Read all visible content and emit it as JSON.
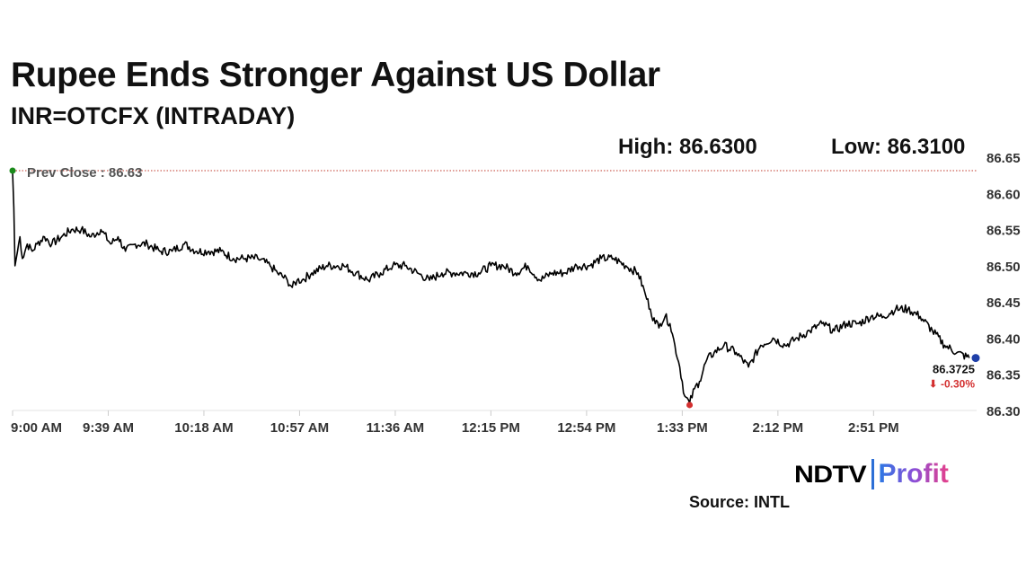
{
  "header": {
    "title": "Rupee Ends Stronger Against US Dollar",
    "subtitle": "INR=OTCFX (INTRADAY)",
    "high_text": "High: 86.6300",
    "low_text": "Low: 86.3100"
  },
  "footer": {
    "logo_ndtv": "NDTV",
    "logo_profit": "Profit",
    "source": "Source: INTL"
  },
  "colors": {
    "line": "#000000",
    "prev_close_line": "#c0392b",
    "open_marker": "#1a8a1a",
    "low_marker": "#d32f2f",
    "last_marker": "#1f3fa8",
    "change_negative": "#d32f2f"
  },
  "chart_data": {
    "type": "line",
    "title": "Rupee Ends Stronger Against US Dollar",
    "subtitle": "INR=OTCFX (INTRADAY)",
    "xlabel": "",
    "ylabel": "",
    "ylim": [
      86.3,
      86.65
    ],
    "y_ticks": [
      86.3,
      86.35,
      86.4,
      86.45,
      86.5,
      86.55,
      86.6,
      86.65
    ],
    "x_ticks": [
      "9:00 AM",
      "9:39 AM",
      "10:18 AM",
      "10:57 AM",
      "11:36 AM",
      "12:15 PM",
      "12:54 PM",
      "1:33 PM",
      "2:12 PM",
      "2:51 PM"
    ],
    "x_tick_minutes": [
      0,
      39,
      78,
      117,
      156,
      195,
      234,
      273,
      312,
      351
    ],
    "x_range_minutes": [
      0,
      393
    ],
    "y_axis_position": "right",
    "grid": false,
    "prev_close": {
      "label": "Prev Close : 86.63",
      "value": 86.63
    },
    "high": 86.63,
    "low": 86.31,
    "last": {
      "value": 86.3725,
      "label": "86.3725",
      "change_label": "⬇ -0.30%"
    },
    "series": [
      {
        "x": [
          0,
          0.5,
          1,
          2,
          3,
          4,
          6,
          8,
          10,
          13,
          16,
          20,
          24,
          28,
          32,
          36,
          40,
          43,
          46,
          50,
          55,
          60,
          65,
          70,
          75,
          80,
          85,
          90,
          95,
          100,
          105,
          108,
          112,
          114,
          116,
          118,
          122,
          128,
          135,
          140,
          145,
          150,
          155,
          160,
          165,
          170,
          175,
          180,
          185,
          190,
          195,
          200,
          205,
          210,
          215,
          220,
          225,
          230,
          235,
          240,
          245,
          250,
          255,
          258,
          260,
          262,
          264,
          266,
          268,
          270,
          272,
          274,
          276,
          278,
          280,
          283,
          286,
          290,
          295,
          300,
          305,
          310,
          315,
          320,
          325,
          330,
          335,
          340,
          345,
          350,
          355,
          360,
          365,
          370,
          375,
          380,
          385,
          390
        ],
        "y": [
          86.63,
          86.58,
          86.5,
          86.52,
          86.54,
          86.51,
          86.53,
          86.52,
          86.53,
          86.54,
          86.53,
          86.54,
          86.55,
          86.55,
          86.54,
          86.55,
          86.53,
          86.54,
          86.52,
          86.53,
          86.53,
          86.52,
          86.52,
          86.53,
          86.52,
          86.52,
          86.52,
          86.51,
          86.51,
          86.51,
          86.5,
          86.49,
          86.48,
          86.47,
          86.48,
          86.48,
          86.49,
          86.5,
          86.5,
          86.49,
          86.48,
          86.49,
          86.5,
          86.5,
          86.49,
          86.48,
          86.49,
          86.49,
          86.49,
          86.49,
          86.5,
          86.5,
          86.49,
          86.5,
          86.48,
          86.49,
          86.49,
          86.5,
          86.5,
          86.51,
          86.51,
          86.5,
          86.49,
          86.46,
          86.44,
          86.42,
          86.42,
          86.43,
          86.42,
          86.39,
          86.36,
          86.32,
          86.31,
          86.33,
          86.34,
          86.37,
          86.38,
          86.39,
          86.38,
          86.36,
          86.39,
          86.4,
          86.39,
          86.4,
          86.41,
          86.42,
          86.41,
          86.42,
          86.42,
          86.43,
          86.43,
          86.44,
          86.44,
          86.43,
          86.41,
          86.39,
          86.38,
          86.3725
        ]
      }
    ]
  }
}
